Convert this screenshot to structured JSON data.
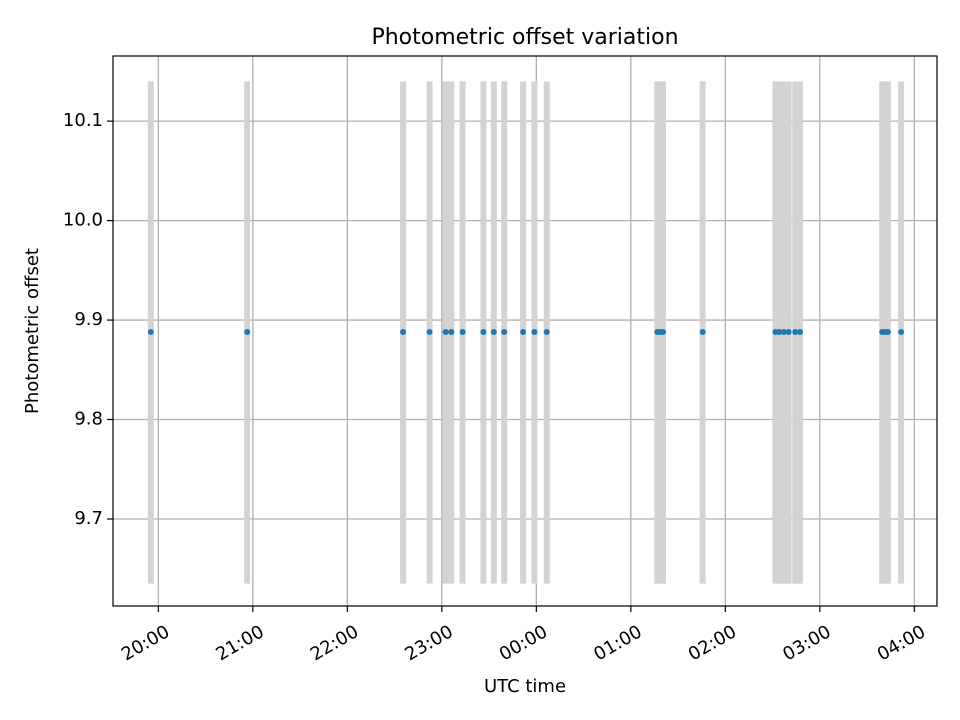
{
  "chart_data": {
    "type": "scatter",
    "title": "Photometric offset variation",
    "xlabel": "UTC time",
    "ylabel": "Photometric offset",
    "x_axis": "time (hours, day boundary at 24:00)",
    "xlim": [
      19.52,
      28.24
    ],
    "ylim": [
      9.6125,
      10.1655
    ],
    "x_ticks": [
      20,
      21,
      22,
      23,
      24,
      25,
      26,
      27,
      28
    ],
    "x_tick_labels": [
      "20:00",
      "21:00",
      "22:00",
      "23:00",
      "00:00",
      "01:00",
      "02:00",
      "03:00",
      "04:00"
    ],
    "y_ticks": [
      9.7,
      9.8,
      9.9,
      10.0,
      10.1
    ],
    "y_tick_labels": [
      "9.7",
      "9.8",
      "9.9",
      "10.0",
      "10.1"
    ],
    "grid": true,
    "band_range": [
      9.635,
      10.14
    ],
    "band_color": "#d3d3d3",
    "point_color": "#1f77b4",
    "points_x": [
      19.92,
      20.94,
      22.59,
      22.87,
      23.04,
      23.1,
      23.22,
      23.44,
      23.55,
      23.66,
      23.86,
      23.98,
      24.11,
      25.28,
      25.31,
      25.34,
      25.76,
      26.53,
      26.57,
      26.62,
      26.67,
      26.74,
      26.79,
      27.66,
      27.69,
      27.72,
      27.86
    ],
    "points_y": [
      9.888,
      9.888,
      9.888,
      9.888,
      9.888,
      9.888,
      9.888,
      9.888,
      9.888,
      9.888,
      9.888,
      9.888,
      9.888,
      9.888,
      9.888,
      9.888,
      9.888,
      9.888,
      9.888,
      9.888,
      9.888,
      9.888,
      9.888,
      9.888,
      9.888,
      9.888,
      9.888
    ]
  }
}
